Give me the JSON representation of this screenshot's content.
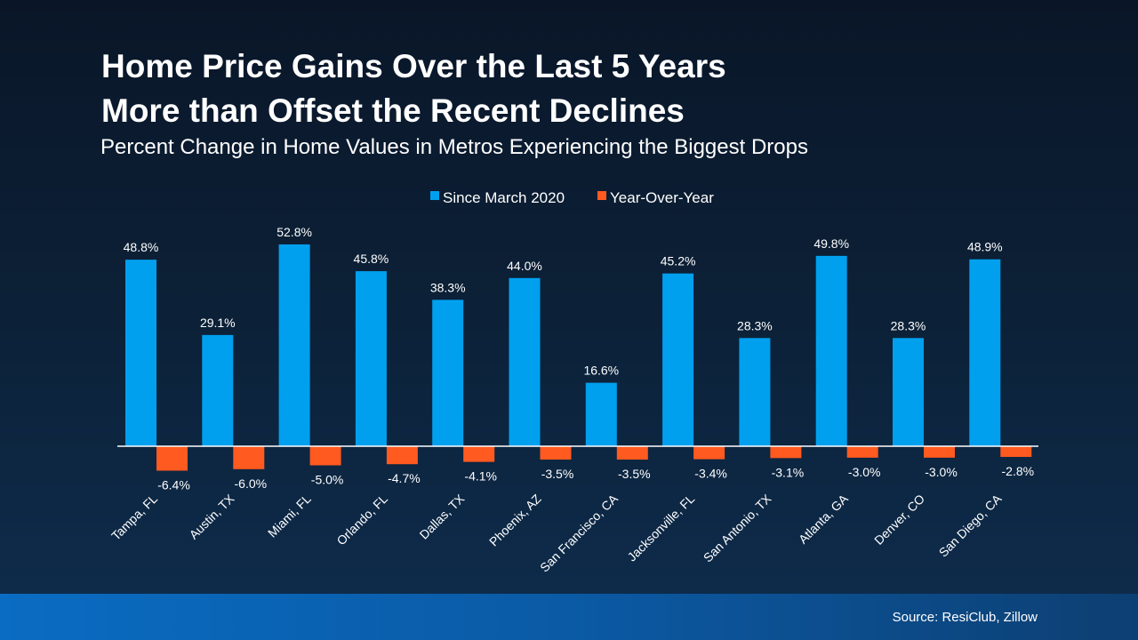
{
  "chart_data": {
    "type": "bar",
    "title": "Home Price Gains Over the Last 5 Years More than Offset the Recent Declines",
    "title_lines": [
      "Home Price Gains Over the Last 5 Years",
      "More than Offset the Recent Declines"
    ],
    "subtitle": "Percent Change in Home Values in Metros Experiencing the Biggest Drops",
    "categories": [
      "Tampa, FL",
      "Austin, TX",
      "Miami, FL",
      "Orlando, FL",
      "Dallas, TX",
      "Phoenix, AZ",
      "San Francisco, CA",
      "Jacksonville, FL",
      "San Antonio, TX",
      "Atlanta, GA",
      "Denver, CO",
      "San Diego, CA"
    ],
    "series": [
      {
        "name": "Since March 2020",
        "color": "#00a0ef",
        "values": [
          48.8,
          29.1,
          52.8,
          45.8,
          38.3,
          44.0,
          16.6,
          45.2,
          28.3,
          49.8,
          28.3,
          48.9
        ]
      },
      {
        "name": "Year-Over-Year",
        "color": "#ff5a1f",
        "values": [
          -6.4,
          -6.0,
          -5.0,
          -4.7,
          -4.1,
          -3.5,
          -3.5,
          -3.4,
          -3.1,
          -3.0,
          -3.0,
          -2.8
        ]
      }
    ],
    "value_format": "percent, 1 decimal",
    "legend": "top-center",
    "grid": false,
    "xlabel": "",
    "ylabel": ""
  },
  "source": "Source: ResiClub, Zillow"
}
